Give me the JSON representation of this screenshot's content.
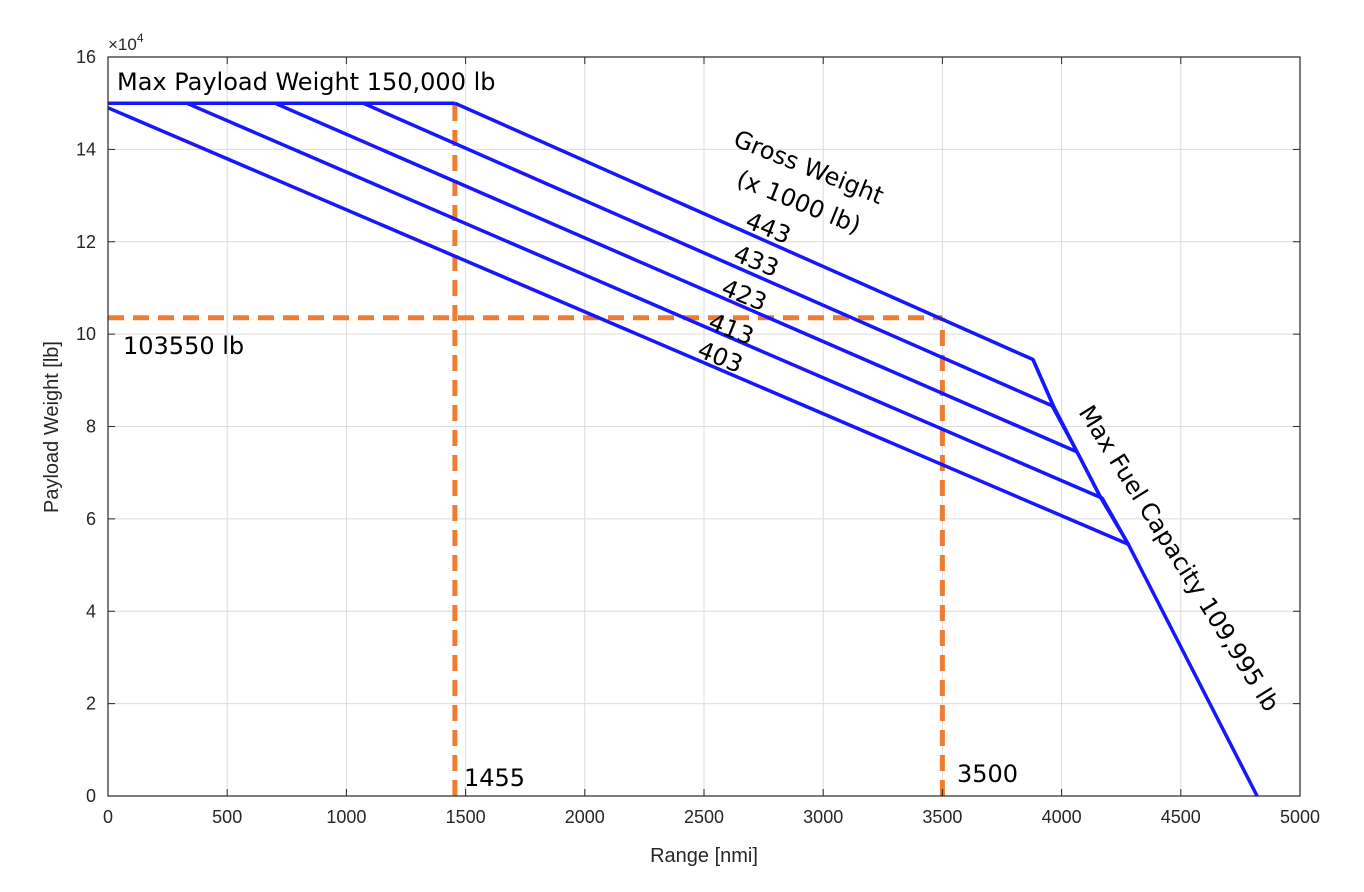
{
  "chart_data": {
    "type": "line",
    "xlabel": "Range [nmi]",
    "ylabel": "Payload Weight [lb]",
    "y_multiplier_label": "×10",
    "y_multiplier_exponent": "4",
    "xlim": [
      0,
      5000
    ],
    "ylim": [
      0,
      160000
    ],
    "xticks": [
      "0",
      "500",
      "1000",
      "1500",
      "2000",
      "2500",
      "3000",
      "3500",
      "4000",
      "4500",
      "5000"
    ],
    "yticks": [
      "0",
      "2",
      "4",
      "6",
      "8",
      "10",
      "12",
      "14",
      "16"
    ],
    "grid": true,
    "colors": {
      "series": "#1616ff",
      "guides": "#ee7d31"
    },
    "series": [
      {
        "name": "443",
        "x": [
          1455,
          3880,
          3965
        ],
        "y": [
          150000,
          94500,
          84500
        ]
      },
      {
        "name": "433",
        "x": [
          1070,
          3960,
          4065
        ],
        "y": [
          150000,
          84500,
          74500
        ]
      },
      {
        "name": "423",
        "x": [
          700,
          4065,
          4165
        ],
        "y": [
          150000,
          74500,
          64500
        ]
      },
      {
        "name": "413",
        "x": [
          330,
          4170,
          4280
        ],
        "y": [
          150000,
          64500,
          54500
        ]
      },
      {
        "name": "403",
        "x": [
          0,
          4280
        ],
        "y": [
          149000,
          54500
        ]
      },
      {
        "name": "Max Fuel Capacity 109,995 lb",
        "x": [
          3880,
          3965,
          4065,
          4165,
          4280,
          4820
        ],
        "y": [
          94500,
          84500,
          74500,
          64500,
          54500,
          0
        ]
      },
      {
        "name": "Max Payload Weight 150,000 lb",
        "x": [
          0,
          1455
        ],
        "y": [
          150000,
          150000
        ]
      }
    ],
    "guides": [
      {
        "name": "103550 lb",
        "x": [
          0,
          3500
        ],
        "y": [
          103550,
          103550
        ]
      },
      {
        "name": "1455",
        "x": [
          1455,
          1455
        ],
        "y": [
          0,
          150000
        ]
      },
      {
        "name": "3500",
        "x": [
          3500,
          3500
        ],
        "y": [
          0,
          103550
        ]
      }
    ],
    "annotations": {
      "max_payload": "Max Payload Weight 150,000 lb",
      "gross_weight_1": "Gross Weight",
      "gross_weight_2": "(x 1000 lb)",
      "gw_443": "443",
      "gw_433": "433",
      "gw_423": "423",
      "gw_413": "413",
      "gw_403": "403",
      "max_fuel": "Max Fuel Capacity 109,995 lb",
      "payload_value": "103550 lb",
      "range_1455": "1455",
      "range_3500": "3500"
    }
  }
}
